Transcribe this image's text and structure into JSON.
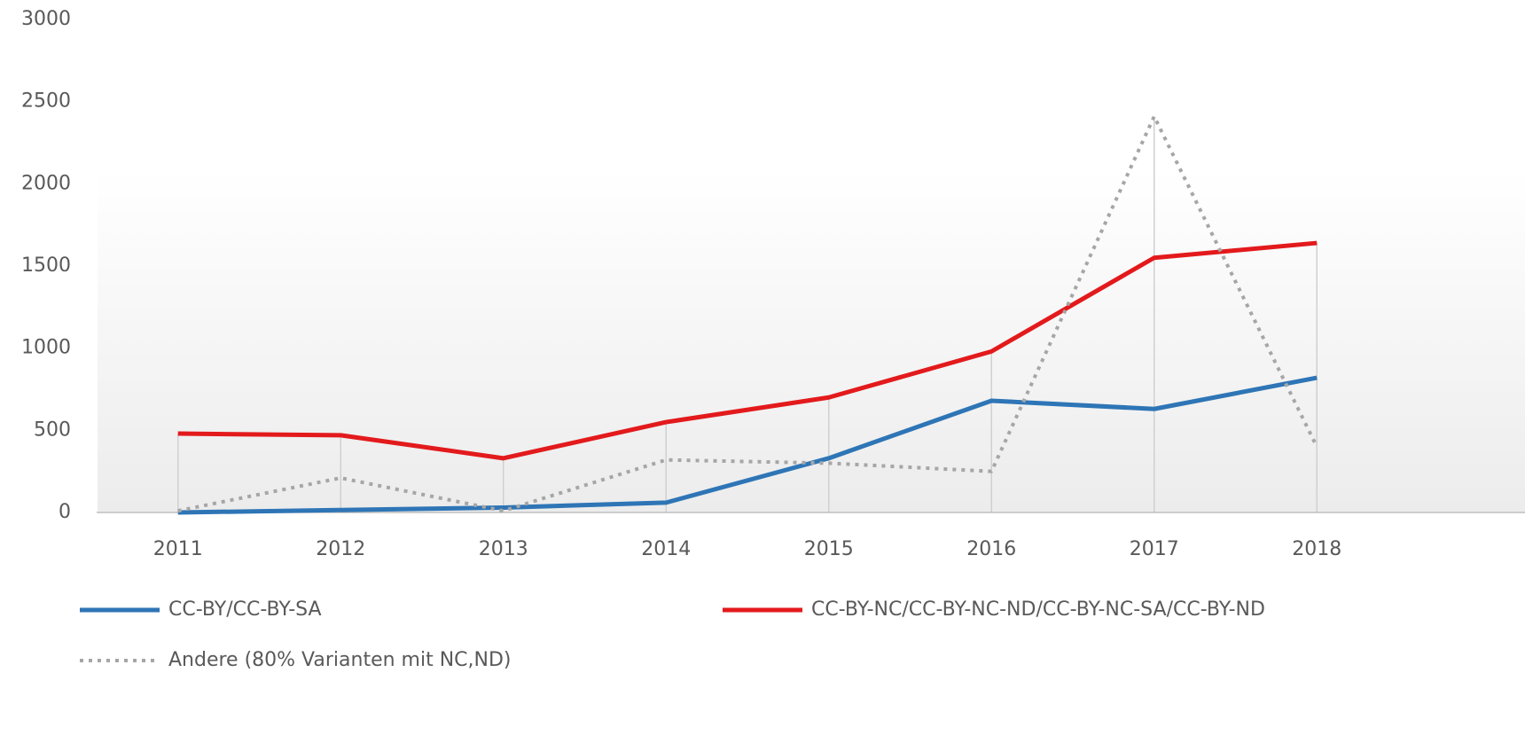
{
  "chart_data": {
    "type": "line",
    "categories": [
      "2011",
      "2012",
      "2013",
      "2014",
      "2015",
      "2016",
      "2017",
      "2018"
    ],
    "series": [
      {
        "name": "CC-BY/CC-BY-SA",
        "color": "#2e75b6",
        "style": "solid",
        "values": [
          0,
          15,
          30,
          60,
          330,
          680,
          630,
          820
        ]
      },
      {
        "name": "CC-BY-NC/CC-BY-NC-ND/CC-BY-NC-SA/CC-BY-ND",
        "color": "#e31a1c",
        "style": "solid",
        "values": [
          480,
          470,
          330,
          550,
          700,
          980,
          1550,
          1640
        ]
      },
      {
        "name": "Andere (80% Varianten mit NC,ND)",
        "color": "#a6a6a6",
        "style": "dotted",
        "values": [
          10,
          210,
          10,
          320,
          300,
          250,
          2410,
          400
        ]
      }
    ],
    "ylim": [
      0,
      3000
    ],
    "yticks": [
      0,
      500,
      1000,
      1500,
      2000,
      2500,
      3000
    ],
    "grid": false,
    "drop_lines": true
  }
}
